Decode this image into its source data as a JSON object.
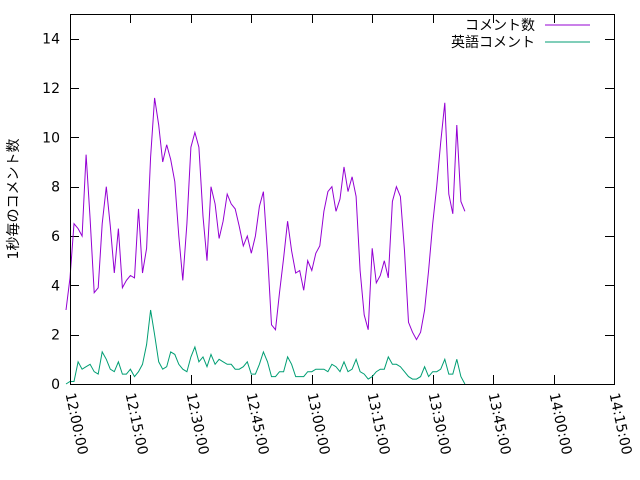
{
  "chart_data": {
    "type": "line",
    "title": "",
    "xlabel": "",
    "ylabel": "1秒毎のコメント数",
    "x_range": [
      "12:00:00",
      "14:15:00"
    ],
    "x_step_seconds": 60,
    "x_start": "11:59:00",
    "ylim": [
      0,
      15
    ],
    "grid": false,
    "legend_position": "top-right",
    "y_ticks": [
      "0",
      "2",
      "4",
      "6",
      "8",
      "10",
      "12",
      "14"
    ],
    "x_ticks": [
      "12:00:00",
      "12:15:00",
      "12:30:00",
      "12:45:00",
      "13:00:00",
      "13:15:00",
      "13:30:00",
      "13:45:00",
      "14:00:00",
      "14:15:00"
    ],
    "series": [
      {
        "name": "コメント数",
        "color": "#9400d3",
        "values": [
          3.0,
          4.3,
          6.5,
          6.3,
          6.0,
          9.3,
          6.7,
          3.7,
          3.9,
          6.5,
          8.0,
          6.4,
          4.5,
          6.3,
          3.9,
          4.2,
          4.4,
          4.3,
          7.1,
          4.5,
          5.5,
          9.2,
          11.6,
          10.5,
          9.0,
          9.7,
          9.1,
          8.2,
          6.0,
          4.2,
          6.5,
          9.6,
          10.2,
          9.6,
          6.8,
          5.0,
          8.0,
          7.3,
          5.9,
          6.6,
          7.7,
          7.3,
          7.1,
          6.4,
          5.6,
          6.0,
          5.3,
          6.0,
          7.2,
          7.8,
          5.3,
          2.4,
          2.2,
          3.7,
          5.1,
          6.6,
          5.4,
          4.5,
          4.6,
          3.8,
          5.0,
          4.6,
          5.3,
          5.6,
          7.0,
          7.8,
          8.0,
          7.0,
          7.5,
          8.8,
          7.8,
          8.4,
          7.6,
          4.6,
          2.8,
          2.2,
          5.5,
          4.1,
          4.4,
          5.0,
          4.3,
          7.4,
          8.0,
          7.6,
          5.4,
          2.5,
          2.1,
          1.8,
          2.1,
          3.0,
          4.6,
          6.5,
          8.0,
          9.8,
          11.4,
          7.7,
          6.9,
          10.5,
          7.4,
          7.0
        ]
      },
      {
        "name": "英語コメント",
        "color": "#009e73",
        "values": [
          0.0,
          0.1,
          0.1,
          0.9,
          0.6,
          0.7,
          0.8,
          0.5,
          0.4,
          1.3,
          1.0,
          0.6,
          0.5,
          0.9,
          0.4,
          0.4,
          0.6,
          0.3,
          0.5,
          0.8,
          1.6,
          3.0,
          2.0,
          0.9,
          0.6,
          0.7,
          1.3,
          1.2,
          0.8,
          0.6,
          0.5,
          1.1,
          1.5,
          0.9,
          1.1,
          0.7,
          1.2,
          0.8,
          1.0,
          0.9,
          0.8,
          0.8,
          0.6,
          0.6,
          0.7,
          0.9,
          0.4,
          0.4,
          0.8,
          1.3,
          0.9,
          0.3,
          0.3,
          0.5,
          0.5,
          1.1,
          0.8,
          0.3,
          0.3,
          0.3,
          0.5,
          0.5,
          0.6,
          0.6,
          0.6,
          0.5,
          0.8,
          0.7,
          0.5,
          0.9,
          0.5,
          0.6,
          1.0,
          0.5,
          0.4,
          0.2,
          0.3,
          0.5,
          0.6,
          0.6,
          1.1,
          0.8,
          0.8,
          0.7,
          0.5,
          0.3,
          0.2,
          0.2,
          0.3,
          0.7,
          0.3,
          0.5,
          0.5,
          0.6,
          1.0,
          0.4,
          0.4,
          1.0,
          0.3,
          0.0
        ]
      }
    ]
  }
}
